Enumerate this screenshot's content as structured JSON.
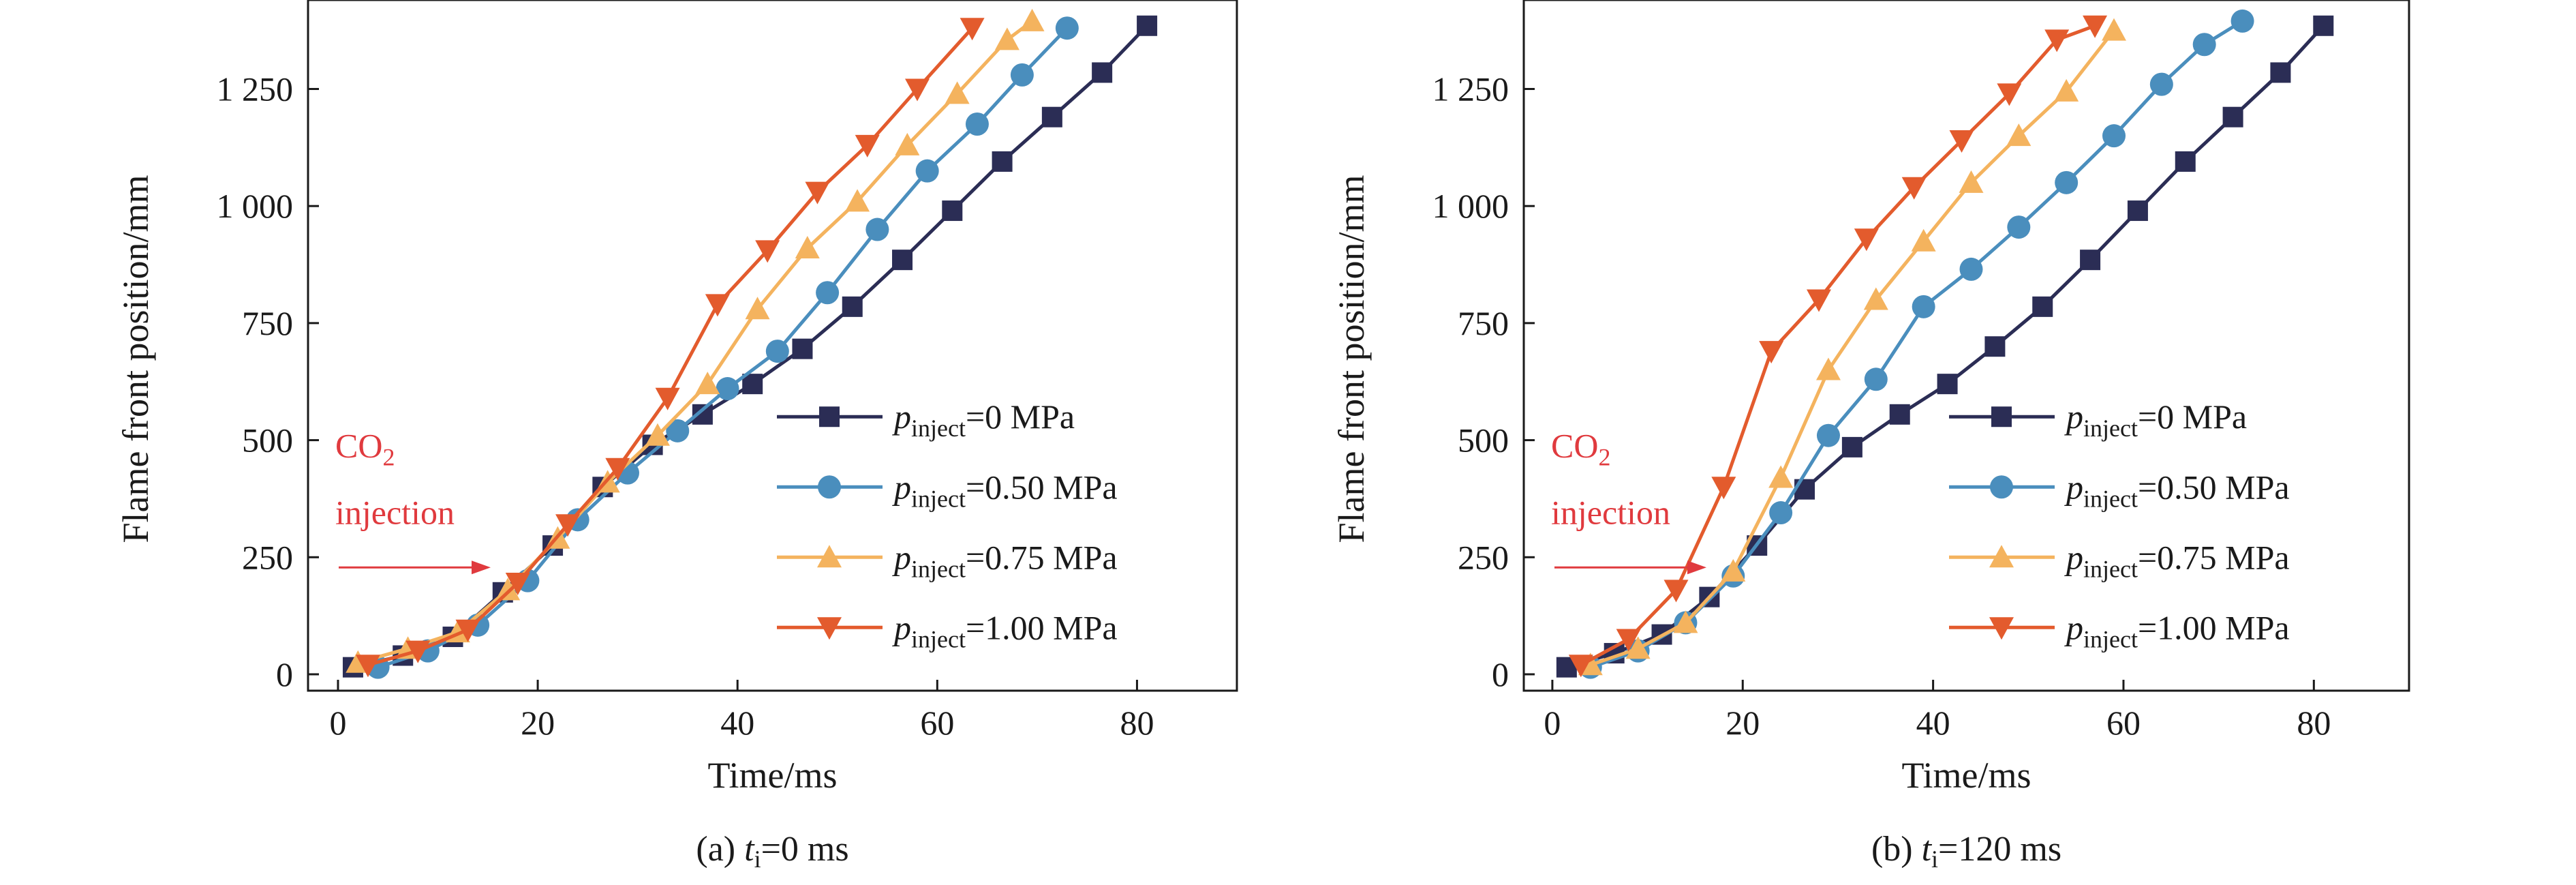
{
  "colors": {
    "series": [
      "#2b2d55",
      "#4a8ebd",
      "#f4b35e",
      "#e35b2d"
    ],
    "annotation": "#e03a3e",
    "axis": "#1a1a1a"
  },
  "legend_labels": {
    "p_symbol": "p",
    "p_subscript": "inject",
    "values": [
      "=0 MPa",
      "=0.50 MPa",
      "=0.75 MPa",
      "=1.00 MPa"
    ]
  },
  "annotation": {
    "co2_main": "CO",
    "co2_sub": "2",
    "co2_line2": "injection"
  },
  "chart_data": [
    {
      "type": "line",
      "caption_prefix": "(a) ",
      "caption_t": "t",
      "caption_sub": "i",
      "caption_suffix": "=0 ms",
      "xlabel": "Time/ms",
      "ylabel": "Flame front position/mm",
      "xlim": [
        -3,
        90
      ],
      "ylim": [
        -35,
        1440
      ],
      "xticks": [
        0,
        20,
        40,
        60,
        80
      ],
      "yticks": [
        0,
        250,
        500,
        750,
        1000,
        1250
      ],
      "ytick_labels": [
        "0",
        "250",
        "500",
        "750",
        "1 000",
        "1 250"
      ],
      "legend_position": "lower-right",
      "series": [
        {
          "marker": "square",
          "x": [
            1.5,
            6.5,
            11.5,
            16.5,
            21.5,
            26.5,
            31.5,
            36.5,
            41.5,
            46.5,
            51.5,
            56.5,
            61.5,
            66.5,
            71.5,
            76.5,
            81
          ],
          "y": [
            15,
            40,
            80,
            175,
            275,
            400,
            490,
            555,
            620,
            695,
            785,
            885,
            990,
            1095,
            1190,
            1285,
            1385
          ]
        },
        {
          "marker": "circle",
          "x": [
            4,
            9,
            14,
            19,
            24,
            29,
            34,
            39,
            44,
            49,
            54,
            59,
            64,
            68.5,
            73
          ],
          "y": [
            15,
            50,
            105,
            200,
            330,
            430,
            520,
            610,
            690,
            815,
            950,
            1075,
            1175,
            1280,
            1380
          ]
        },
        {
          "marker": "triangle-up",
          "x": [
            2,
            7,
            12,
            17,
            22,
            27,
            32,
            37,
            42,
            47,
            52,
            57,
            62,
            67,
            69.5
          ],
          "y": [
            25,
            55,
            90,
            180,
            290,
            410,
            510,
            620,
            780,
            910,
            1010,
            1130,
            1240,
            1355,
            1395
          ]
        },
        {
          "marker": "triangle-down",
          "x": [
            3,
            8,
            13,
            18,
            23,
            28,
            33,
            38,
            43,
            48,
            53,
            58,
            63.5
          ],
          "y": [
            20,
            50,
            95,
            195,
            320,
            440,
            590,
            790,
            905,
            1030,
            1130,
            1250,
            1380
          ]
        }
      ]
    },
    {
      "type": "line",
      "caption_prefix": "(b) ",
      "caption_t": "t",
      "caption_sub": "i",
      "caption_suffix": "=120 ms",
      "xlabel": "Time/ms",
      "ylabel": "Flame front position/mm",
      "xlim": [
        -3,
        90
      ],
      "ylim": [
        -35,
        1440
      ],
      "xticks": [
        0,
        20,
        40,
        60,
        80
      ],
      "yticks": [
        0,
        250,
        500,
        750,
        1000,
        1250
      ],
      "ytick_labels": [
        "0",
        "250",
        "500",
        "750",
        "1 000",
        "1 250"
      ],
      "legend_position": "lower-right",
      "series": [
        {
          "marker": "square",
          "x": [
            1.5,
            6.5,
            11.5,
            16.5,
            21.5,
            26.5,
            31.5,
            36.5,
            41.5,
            46.5,
            51.5,
            56.5,
            61.5,
            66.5,
            71.5,
            76.5,
            81
          ],
          "y": [
            15,
            45,
            85,
            165,
            275,
            395,
            485,
            555,
            620,
            700,
            785,
            885,
            990,
            1095,
            1190,
            1285,
            1385
          ]
        },
        {
          "marker": "circle",
          "x": [
            4,
            9,
            14,
            19,
            24,
            29,
            34,
            39,
            44,
            49,
            54,
            59,
            64,
            68.5,
            72.5
          ],
          "y": [
            15,
            50,
            110,
            210,
            345,
            510,
            630,
            785,
            865,
            955,
            1050,
            1150,
            1260,
            1345,
            1395
          ]
        },
        {
          "marker": "triangle-up",
          "x": [
            4,
            9,
            14,
            19,
            24,
            29,
            34,
            39,
            44,
            49,
            54,
            59
          ],
          "y": [
            20,
            55,
            110,
            220,
            420,
            650,
            800,
            925,
            1050,
            1150,
            1245,
            1375
          ]
        },
        {
          "marker": "triangle-down",
          "x": [
            3,
            8,
            13,
            18,
            23,
            28,
            33,
            38,
            43,
            48,
            53,
            57
          ],
          "y": [
            20,
            75,
            180,
            400,
            690,
            800,
            930,
            1040,
            1140,
            1240,
            1355,
            1385
          ]
        }
      ]
    }
  ]
}
